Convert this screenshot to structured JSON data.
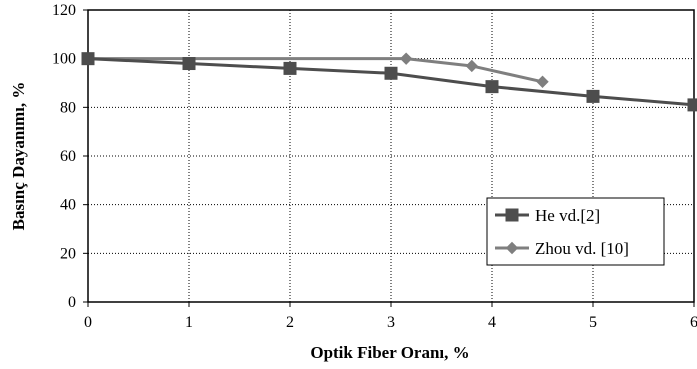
{
  "chart_data": {
    "type": "line",
    "xlabel": "Optik Fiber Oranı, %",
    "ylabel": "Basınç Dayanımı, %",
    "xlim": [
      0,
      6
    ],
    "ylim": [
      0,
      120
    ],
    "x_ticks": [
      "0",
      "1",
      "2",
      "3",
      "4",
      "5",
      "6"
    ],
    "y_ticks": [
      "0",
      "20",
      "40",
      "60",
      "80",
      "100",
      "120"
    ],
    "grid": "dotted",
    "legend_position": "bottom-right",
    "series": [
      {
        "name": "He vd.[2]",
        "marker": "square",
        "color": "#4d4d4d",
        "x": [
          0,
          1,
          2,
          3,
          4,
          5,
          6
        ],
        "y": [
          100,
          98,
          96,
          94,
          88.5,
          84.5,
          81
        ]
      },
      {
        "name": "Zhou vd. [10]",
        "marker": "diamond",
        "color": "#7f7f7f",
        "x": [
          0,
          3.15,
          3.8,
          4.5
        ],
        "y": [
          100,
          100,
          97,
          90.5
        ]
      }
    ]
  }
}
